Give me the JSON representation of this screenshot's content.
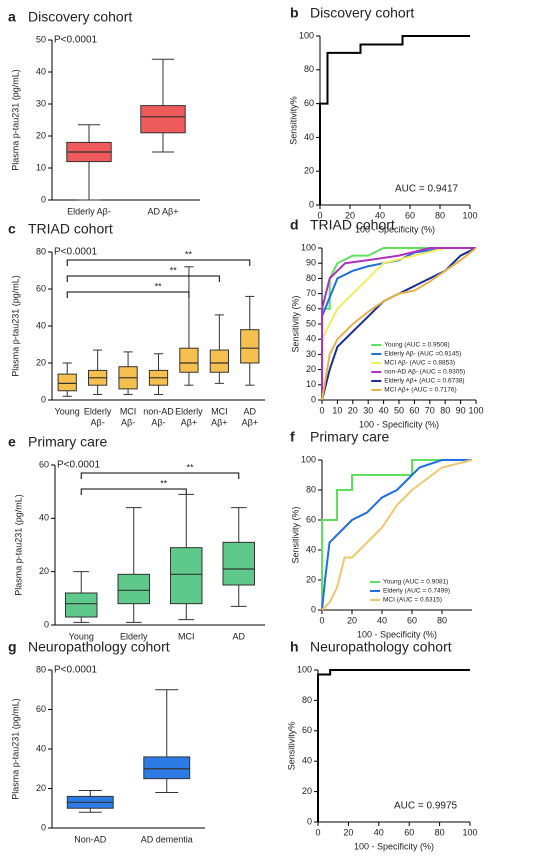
{
  "chart_data": [
    {
      "type": "box",
      "panel": "a",
      "title": "Discovery cohort",
      "ylabel": "Plasma p-tau231 (pg/mL)",
      "annotation": "P<0.0001",
      "color": "#ef5b5b",
      "categories": [
        [
          "Elderly Aβ-"
        ],
        [
          "AD  Aβ+"
        ]
      ],
      "boxes": [
        {
          "min": 0,
          "q1": 12,
          "median": 15,
          "q3": 18,
          "max": 23.5
        },
        {
          "min": 15,
          "q1": 21,
          "median": 26,
          "q3": 29.5,
          "max": 44
        }
      ],
      "ylim": [
        0,
        50
      ],
      "yticks": [
        0,
        10,
        20,
        30,
        40,
        50
      ]
    },
    {
      "type": "line",
      "panel": "b",
      "title": "Discovery cohort",
      "ylabel": "Sensitivity%",
      "xlabel": "100 - Specificity (%)",
      "annotation": "AUC =  0.9417",
      "series": [
        {
          "color": "#000000",
          "x": [
            0,
            0,
            5,
            5,
            27,
            27,
            55,
            55,
            100
          ],
          "values": [
            0,
            60,
            60,
            90,
            90,
            95,
            95,
            100,
            100
          ]
        }
      ],
      "xlim": [
        0,
        100
      ],
      "xticks": [
        0,
        20,
        40,
        60,
        80,
        100
      ],
      "ylim": [
        0,
        100
      ],
      "yticks": [
        0,
        20,
        40,
        60,
        80,
        100
      ]
    },
    {
      "type": "box",
      "panel": "c",
      "title": "TRIAD cohort",
      "ylabel": "Plasma p-tau231 (pg/mL)",
      "annotation": "P<0.0001",
      "color": "#f6c04f",
      "categories": [
        [
          "Young"
        ],
        [
          "Elderly",
          "Aβ-"
        ],
        [
          "MCI",
          "Aβ-"
        ],
        [
          "non-AD",
          "Aβ-"
        ],
        [
          "Elderly",
          "Aβ+"
        ],
        [
          "MCI",
          "Aβ+"
        ],
        [
          "AD",
          "Aβ+"
        ]
      ],
      "boxes": [
        {
          "min": 2,
          "q1": 5,
          "median": 9,
          "q3": 14,
          "max": 20
        },
        {
          "min": 3,
          "q1": 8,
          "median": 12,
          "q3": 16,
          "max": 27
        },
        {
          "min": 3,
          "q1": 6,
          "median": 12,
          "q3": 18,
          "max": 26
        },
        {
          "min": 3,
          "q1": 8,
          "median": 12,
          "q3": 16,
          "max": 25
        },
        {
          "min": 8,
          "q1": 15,
          "median": 20,
          "q3": 28,
          "max": 72
        },
        {
          "min": 9,
          "q1": 15,
          "median": 20,
          "q3": 27,
          "max": 46
        },
        {
          "min": 8,
          "q1": 20,
          "median": 28,
          "q3": 38,
          "max": 56
        }
      ],
      "significance": [
        "**",
        "**",
        "**"
      ],
      "ylim": [
        0,
        80
      ],
      "yticks": [
        0,
        20,
        40,
        60,
        80
      ]
    },
    {
      "type": "line",
      "panel": "d",
      "title": "TRIAD cohort",
      "ylabel": "Sensitivity (%)",
      "xlabel": "100 - Specificity (%)",
      "series": [
        {
          "name": "Young (AUC = 0.9508)",
          "color": "#5ee05e",
          "x": [
            0,
            0,
            5,
            5,
            10,
            20,
            30,
            40,
            60,
            100
          ],
          "values": [
            0,
            60,
            60,
            80,
            90,
            95,
            95,
            100,
            100,
            100
          ]
        },
        {
          "name": "Elderly Aβ- (AUC =0.9145)",
          "color": "#1f6fe0",
          "x": [
            0,
            0,
            10,
            20,
            30,
            40,
            50,
            60,
            80,
            100
          ],
          "values": [
            0,
            55,
            80,
            85,
            88,
            90,
            92,
            97,
            100,
            100
          ]
        },
        {
          "name": "MCI Aβ- (AUC = 0.8853)",
          "color": "#f2ec5a",
          "x": [
            0,
            0,
            10,
            20,
            30,
            40,
            60,
            80,
            100
          ],
          "values": [
            0,
            40,
            60,
            70,
            80,
            90,
            95,
            100,
            100
          ]
        },
        {
          "name": "non-AD Aβ- (AUC = 0.9305)",
          "color": "#b030c0",
          "x": [
            0,
            0,
            5,
            15,
            30,
            50,
            70,
            100
          ],
          "values": [
            0,
            60,
            80,
            90,
            92,
            95,
            100,
            100
          ]
        },
        {
          "name": "Elderly Aβ+ (AUC = 0.6738)",
          "color": "#1a2a9a",
          "x": [
            0,
            5,
            10,
            20,
            30,
            40,
            50,
            60,
            70,
            80,
            90,
            100
          ],
          "values": [
            0,
            20,
            35,
            45,
            55,
            65,
            70,
            75,
            80,
            85,
            95,
            100
          ]
        },
        {
          "name": "MCI Aβ+ (AUC = 0.7176)",
          "color": "#e8b04a",
          "x": [
            0,
            5,
            10,
            20,
            30,
            40,
            50,
            60,
            70,
            80,
            90,
            100
          ],
          "values": [
            0,
            30,
            40,
            50,
            58,
            65,
            70,
            72,
            78,
            85,
            92,
            100
          ]
        }
      ],
      "xlim": [
        0,
        100
      ],
      "xticks": [
        0,
        10,
        20,
        30,
        40,
        50,
        60,
        70,
        80,
        90,
        100
      ],
      "ylim": [
        0,
        100
      ],
      "yticks": [
        0,
        10,
        20,
        30,
        40,
        50,
        60,
        70,
        80,
        90,
        100
      ]
    },
    {
      "type": "box",
      "panel": "e",
      "title": "Primary care",
      "ylabel": "Plasma p-tau231 (pg/mL)",
      "annotation": "P<0.0001",
      "color": "#5ec98a",
      "categories": [
        [
          "Young"
        ],
        [
          "Elderly"
        ],
        [
          "MCI"
        ],
        [
          "AD"
        ]
      ],
      "boxes": [
        {
          "min": 1,
          "q1": 3,
          "median": 8,
          "q3": 12,
          "max": 20
        },
        {
          "min": 1,
          "q1": 8,
          "median": 13,
          "q3": 19,
          "max": 44
        },
        {
          "min": 2,
          "q1": 8,
          "median": 19,
          "q3": 29,
          "max": 49
        },
        {
          "min": 7,
          "q1": 15,
          "median": 21,
          "q3": 31,
          "max": 44
        }
      ],
      "significance": [
        "**",
        "**"
      ],
      "ylim": [
        0,
        60
      ],
      "yticks": [
        0,
        20,
        40,
        60
      ]
    },
    {
      "type": "line",
      "panel": "f",
      "title": "Primary care",
      "ylabel": "Sensitivity (%)",
      "xlabel": "100 - Specificity (%)",
      "series": [
        {
          "name": "Young (AUC = 0.9081)",
          "color": "#5ee05e",
          "x": [
            0,
            0,
            10,
            10,
            20,
            20,
            40,
            60,
            60,
            80,
            100
          ],
          "values": [
            0,
            60,
            60,
            80,
            80,
            90,
            90,
            90,
            100,
            100,
            100
          ]
        },
        {
          "name": "Elderly (AUC = 0.7499)",
          "color": "#1f6fe0",
          "x": [
            0,
            2,
            5,
            10,
            20,
            30,
            40,
            50,
            60,
            65,
            80,
            100
          ],
          "values": [
            0,
            20,
            45,
            50,
            60,
            65,
            75,
            80,
            90,
            95,
            100,
            100
          ]
        },
        {
          "name": "MCI (AUC = 0.6315)",
          "color": "#f2c76a",
          "x": [
            0,
            5,
            10,
            15,
            20,
            30,
            40,
            50,
            60,
            80,
            100
          ],
          "values": [
            0,
            5,
            15,
            35,
            35,
            45,
            55,
            70,
            80,
            95,
            100
          ]
        }
      ],
      "xlim": [
        0,
        100
      ],
      "xticks": [
        0,
        20,
        40,
        60,
        80
      ],
      "ylim": [
        0,
        100
      ],
      "yticks": [
        0,
        20,
        40,
        60,
        80,
        100
      ]
    },
    {
      "type": "box",
      "panel": "g",
      "title": "Neuropathology cohort",
      "ylabel": "Plasma p-tau231 (pg/mL)",
      "annotation": "P<0.0001",
      "color": "#2c7be5",
      "categories": [
        [
          "Non-AD"
        ],
        [
          "AD dementia"
        ]
      ],
      "boxes": [
        {
          "min": 8,
          "q1": 10,
          "median": 13,
          "q3": 16,
          "max": 19
        },
        {
          "min": 18,
          "q1": 25,
          "median": 30,
          "q3": 36,
          "max": 70
        }
      ],
      "ylim": [
        0,
        80
      ],
      "yticks": [
        0,
        20,
        40,
        60,
        80
      ]
    },
    {
      "type": "line",
      "panel": "h",
      "title": "Neuropathology cohort",
      "ylabel": "Sensitivity%",
      "xlabel": "100 - Specificity (%)",
      "annotation": "AUC =  0.9975",
      "series": [
        {
          "color": "#000000",
          "x": [
            0,
            0,
            8,
            8,
            100
          ],
          "values": [
            0,
            97,
            97,
            100,
            100
          ]
        }
      ],
      "xlim": [
        0,
        100
      ],
      "xticks": [
        0,
        20,
        40,
        60,
        80,
        100
      ],
      "ylim": [
        0,
        100
      ],
      "yticks": [
        0,
        20,
        40,
        60,
        80,
        100
      ]
    }
  ]
}
